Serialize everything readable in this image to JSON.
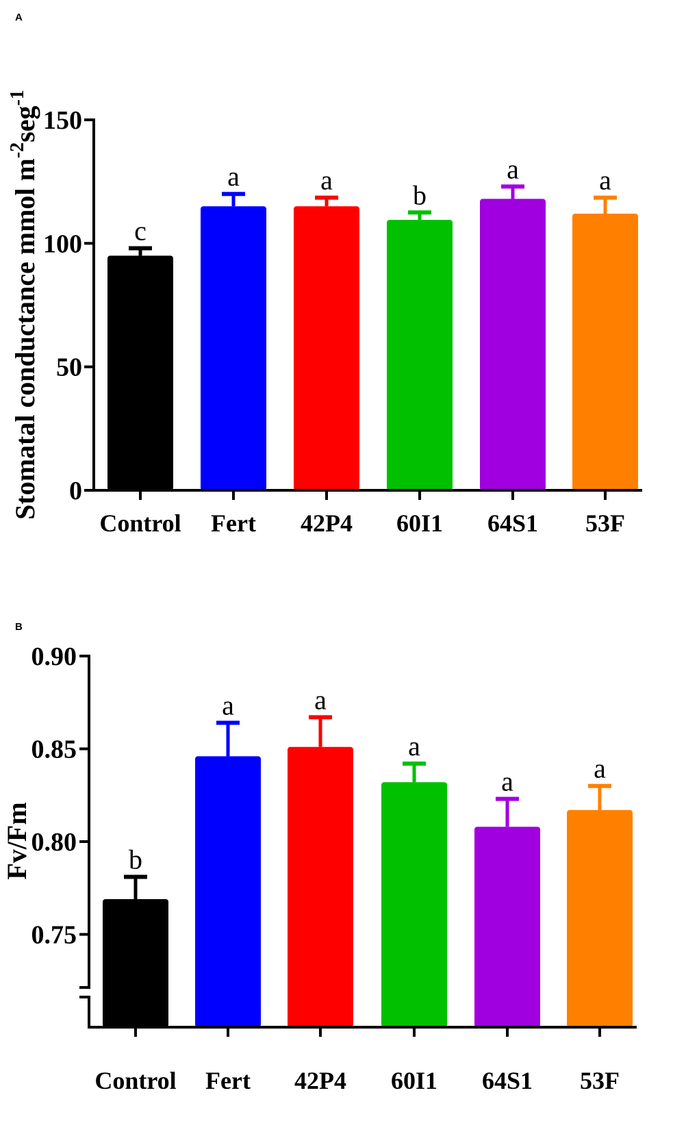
{
  "chart_data": [
    {
      "panel": "A",
      "type": "bar",
      "categories": [
        "Control",
        "Fert",
        "42P4",
        "60I1",
        "64S1",
        "53F"
      ],
      "values": [
        95,
        115,
        115,
        109.5,
        118,
        112
      ],
      "errors": [
        3,
        5,
        3.5,
        3,
        5,
        6.5
      ],
      "significance": [
        "c",
        "a",
        "a",
        "b",
        "a",
        "a"
      ],
      "colors": [
        "#000000",
        "#0000ff",
        "#ff0000",
        "#00c000",
        "#a000e0",
        "#ff8000"
      ],
      "ylabel_parts": [
        "Stomatal conductance mmol m",
        "-2",
        "seg",
        "-1"
      ],
      "ylim": [
        0,
        150
      ],
      "yticks": [
        0,
        50,
        100,
        150
      ],
      "ytick_labels": [
        "0",
        "50",
        "100",
        "150"
      ]
    },
    {
      "panel": "B",
      "type": "bar",
      "categories": [
        "Control",
        "Fert",
        "42P4",
        "60I1",
        "64S1",
        "53F"
      ],
      "values": [
        0.769,
        0.846,
        0.851,
        0.832,
        0.808,
        0.817
      ],
      "errors": [
        0.012,
        0.018,
        0.016,
        0.01,
        0.015,
        0.013
      ],
      "significance": [
        "b",
        "a",
        "a",
        "a",
        "a",
        "a"
      ],
      "colors": [
        "#000000",
        "#0000ff",
        "#ff0000",
        "#00c000",
        "#a000e0",
        "#ff8000"
      ],
      "ylabel": "Fv/Fm",
      "ylim": [
        0.7,
        0.9
      ],
      "axis_break": true,
      "yticks": [
        0.75,
        0.8,
        0.85,
        0.9
      ],
      "ytick_labels": [
        "0.75",
        "0.80",
        "0.85",
        "0.90"
      ]
    }
  ]
}
